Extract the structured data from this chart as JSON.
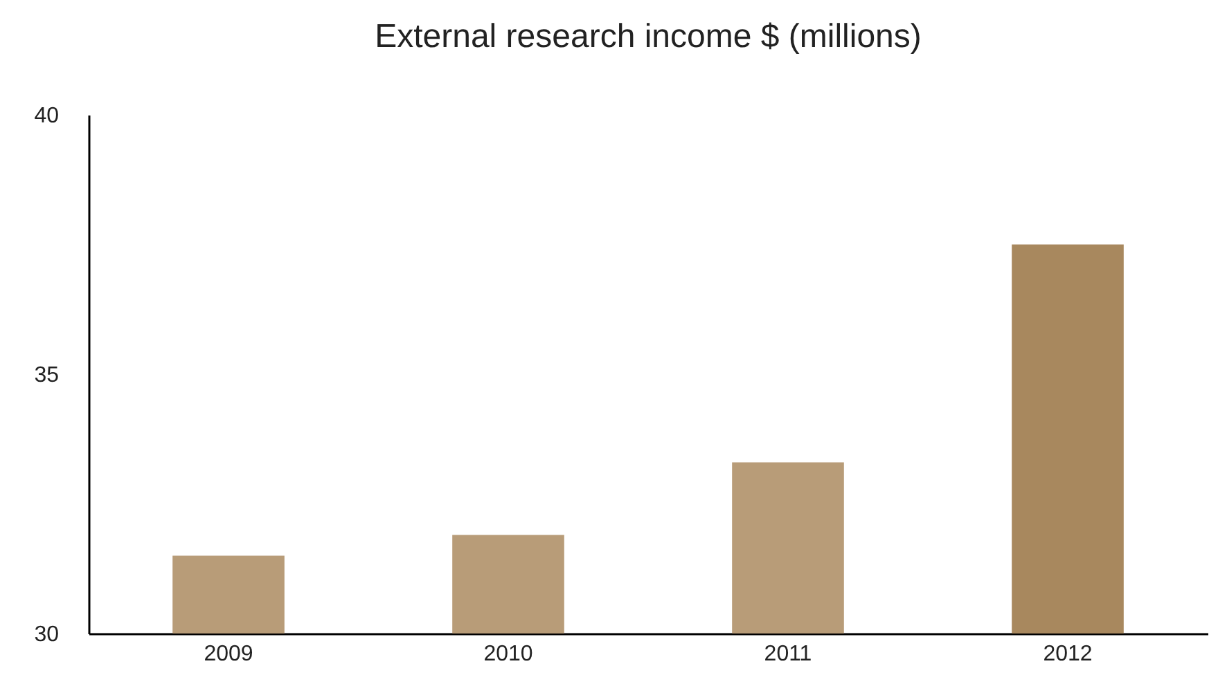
{
  "chart_data": {
    "type": "bar",
    "title": "External research income $ (millions)",
    "categories": [
      "2009",
      "2010",
      "2011",
      "2012"
    ],
    "values": [
      31.5,
      31.9,
      33.3,
      37.5
    ],
    "colors": [
      "#b89c78",
      "#b89c78",
      "#b89c78",
      "#a8885e"
    ],
    "ylim": [
      30,
      40
    ],
    "yticks": [
      30,
      35,
      40
    ],
    "grid": false,
    "legend": false
  }
}
